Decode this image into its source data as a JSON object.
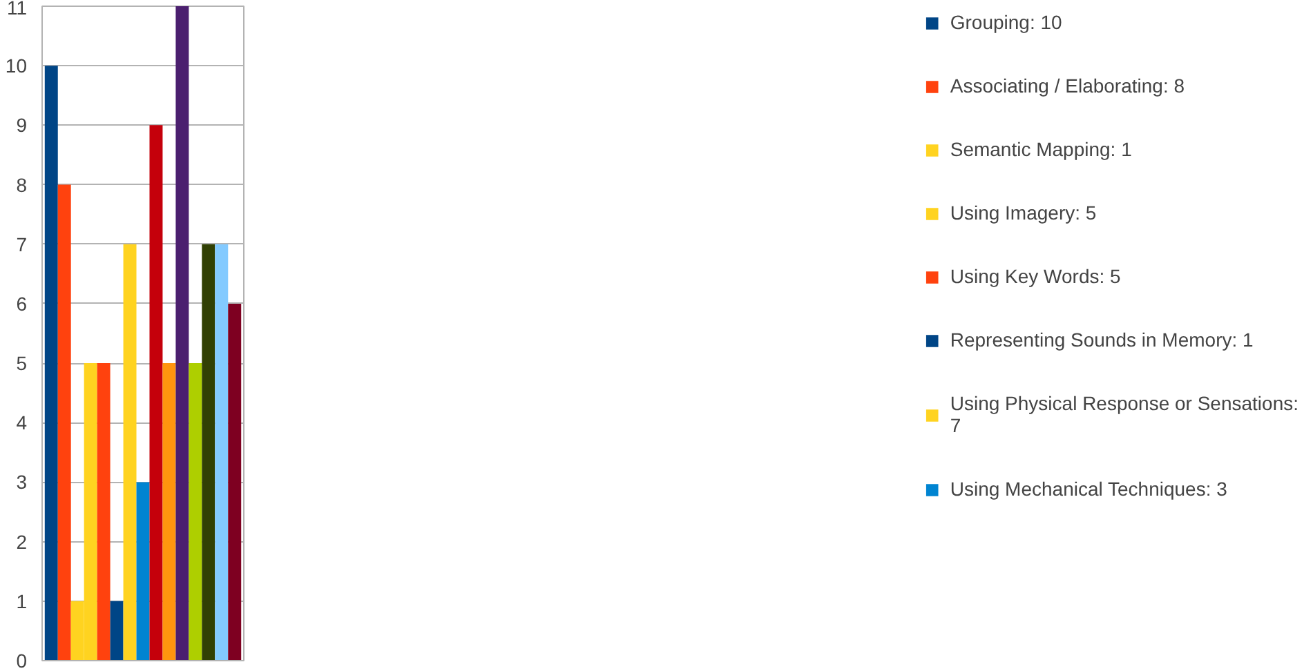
{
  "chart_data": {
    "type": "bar",
    "categories": [
      null,
      null,
      null,
      null,
      null,
      null,
      null,
      null,
      null,
      null,
      null,
      null,
      null,
      null,
      null
    ],
    "series": [
      {
        "name": "Grouping: 10",
        "color": "#004586",
        "values": [
          10,
          null,
          null,
          null,
          null,
          null,
          null,
          null,
          null,
          null,
          null,
          null,
          null,
          null,
          null
        ]
      },
      {
        "name": "Associating / Elaborating: 8",
        "color": "#ff420e",
        "values": [
          null,
          8,
          null,
          null,
          null,
          null,
          null,
          null,
          null,
          null,
          null,
          null,
          null,
          null,
          null
        ]
      },
      {
        "name": "Semantic Mapping: 1",
        "color": "#ffd320",
        "values": [
          null,
          null,
          1,
          null,
          null,
          null,
          null,
          null,
          null,
          null,
          null,
          null,
          null,
          null,
          null
        ]
      },
      {
        "name": "Using Imagery: 5",
        "color": "#ffd320",
        "values": [
          null,
          null,
          null,
          5,
          null,
          null,
          null,
          null,
          null,
          null,
          null,
          null,
          null,
          null,
          null
        ]
      },
      {
        "name": "Using Key Words: 5",
        "color": "#ff420e",
        "values": [
          null,
          null,
          null,
          null,
          5,
          null,
          null,
          null,
          null,
          null,
          null,
          null,
          null,
          null,
          null
        ]
      },
      {
        "name": "Representing Sounds in Memory: 1",
        "color": "#004586",
        "values": [
          null,
          null,
          null,
          null,
          null,
          1,
          null,
          null,
          null,
          null,
          null,
          null,
          null,
          null,
          null
        ]
      },
      {
        "name": "Using Physical Response or Sensations: 7",
        "color": "#ffd320",
        "values": [
          null,
          null,
          null,
          null,
          null,
          null,
          7,
          null,
          null,
          null,
          null,
          null,
          null,
          null,
          null
        ]
      },
      {
        "name": "Using Mechanical Techniques: 3",
        "color": "#0084d1",
        "values": [
          null,
          null,
          null,
          null,
          null,
          null,
          null,
          3,
          null,
          null,
          null,
          null,
          null,
          null,
          null
        ]
      },
      {
        "color": "#c5000b",
        "values": [
          null,
          null,
          null,
          null,
          null,
          null,
          null,
          null,
          9,
          null,
          null,
          null,
          null,
          null,
          null
        ]
      },
      {
        "color": "#ff950e",
        "values": [
          null,
          null,
          null,
          null,
          null,
          null,
          null,
          null,
          null,
          5,
          null,
          null,
          null,
          null,
          null
        ]
      },
      {
        "color": "#4b1f6f",
        "values": [
          null,
          null,
          null,
          null,
          null,
          null,
          null,
          null,
          null,
          null,
          11,
          null,
          null,
          null,
          null
        ]
      },
      {
        "color": "#aecf00",
        "values": [
          null,
          null,
          null,
          null,
          null,
          null,
          null,
          null,
          null,
          null,
          null,
          5,
          null,
          null,
          null
        ]
      },
      {
        "color": "#314004",
        "values": [
          null,
          null,
          null,
          null,
          null,
          null,
          null,
          null,
          null,
          null,
          null,
          null,
          7,
          null,
          null
        ]
      },
      {
        "color": "#83caff",
        "values": [
          null,
          null,
          null,
          null,
          null,
          null,
          null,
          null,
          null,
          null,
          null,
          null,
          null,
          7,
          null
        ]
      },
      {
        "color": "#7e0021",
        "values": [
          null,
          null,
          null,
          null,
          null,
          null,
          null,
          null,
          null,
          null,
          null,
          null,
          null,
          null,
          6
        ]
      }
    ],
    "ylim": [
      0,
      11
    ],
    "yticks": [
      0,
      1,
      2,
      3,
      4,
      5,
      6,
      7,
      8,
      9,
      10,
      11
    ],
    "grid": "y",
    "legend": "right"
  }
}
